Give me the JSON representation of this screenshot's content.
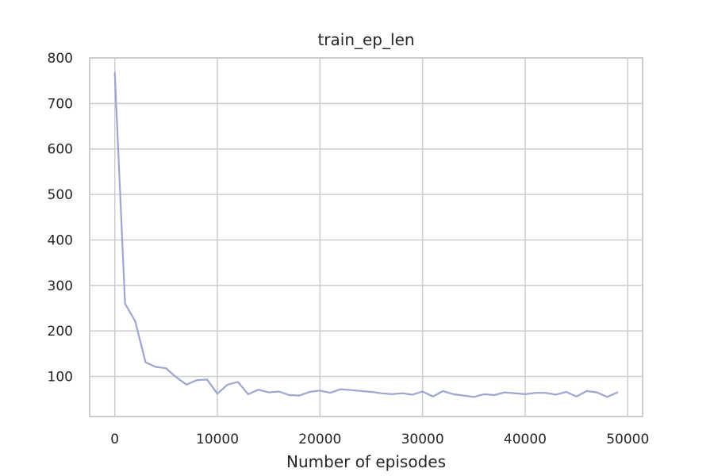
{
  "chart_data": {
    "type": "line",
    "title": "train_ep_len",
    "xlabel": "Number of episodes",
    "ylabel": "",
    "xlim": [
      -2450,
      51450
    ],
    "ylim": [
      12,
      800
    ],
    "xticks": [
      0,
      10000,
      20000,
      30000,
      40000,
      50000
    ],
    "yticks": [
      100,
      200,
      300,
      400,
      500,
      600,
      700,
      800
    ],
    "grid": true,
    "legend": "none",
    "colors": {
      "line": "#9ea5cf"
    },
    "series": [
      {
        "x": [
          0,
          1000,
          2000,
          3000,
          4000,
          5000,
          6000,
          7000,
          8000,
          9000,
          10000,
          11000,
          12000,
          13000,
          14000,
          15000,
          16000,
          17000,
          18000,
          19000,
          20000,
          21000,
          22000,
          23000,
          24000,
          25000,
          26000,
          27000,
          28000,
          29000,
          30000,
          31000,
          32000,
          33000,
          34000,
          35000,
          36000,
          37000,
          38000,
          39000,
          40000,
          41000,
          42000,
          43000,
          44000,
          45000,
          46000,
          47000,
          48000,
          49000
        ],
        "y": [
          767,
          260,
          221,
          131,
          121,
          118,
          98,
          82,
          92,
          93,
          62,
          82,
          88,
          61,
          71,
          65,
          67,
          59,
          58,
          66,
          69,
          64,
          72,
          70,
          68,
          66,
          63,
          61,
          63,
          60,
          67,
          56,
          68,
          61,
          58,
          55,
          61,
          59,
          65,
          63,
          61,
          64,
          64,
          60,
          66,
          56,
          68,
          65,
          55,
          65
        ]
      }
    ]
  }
}
